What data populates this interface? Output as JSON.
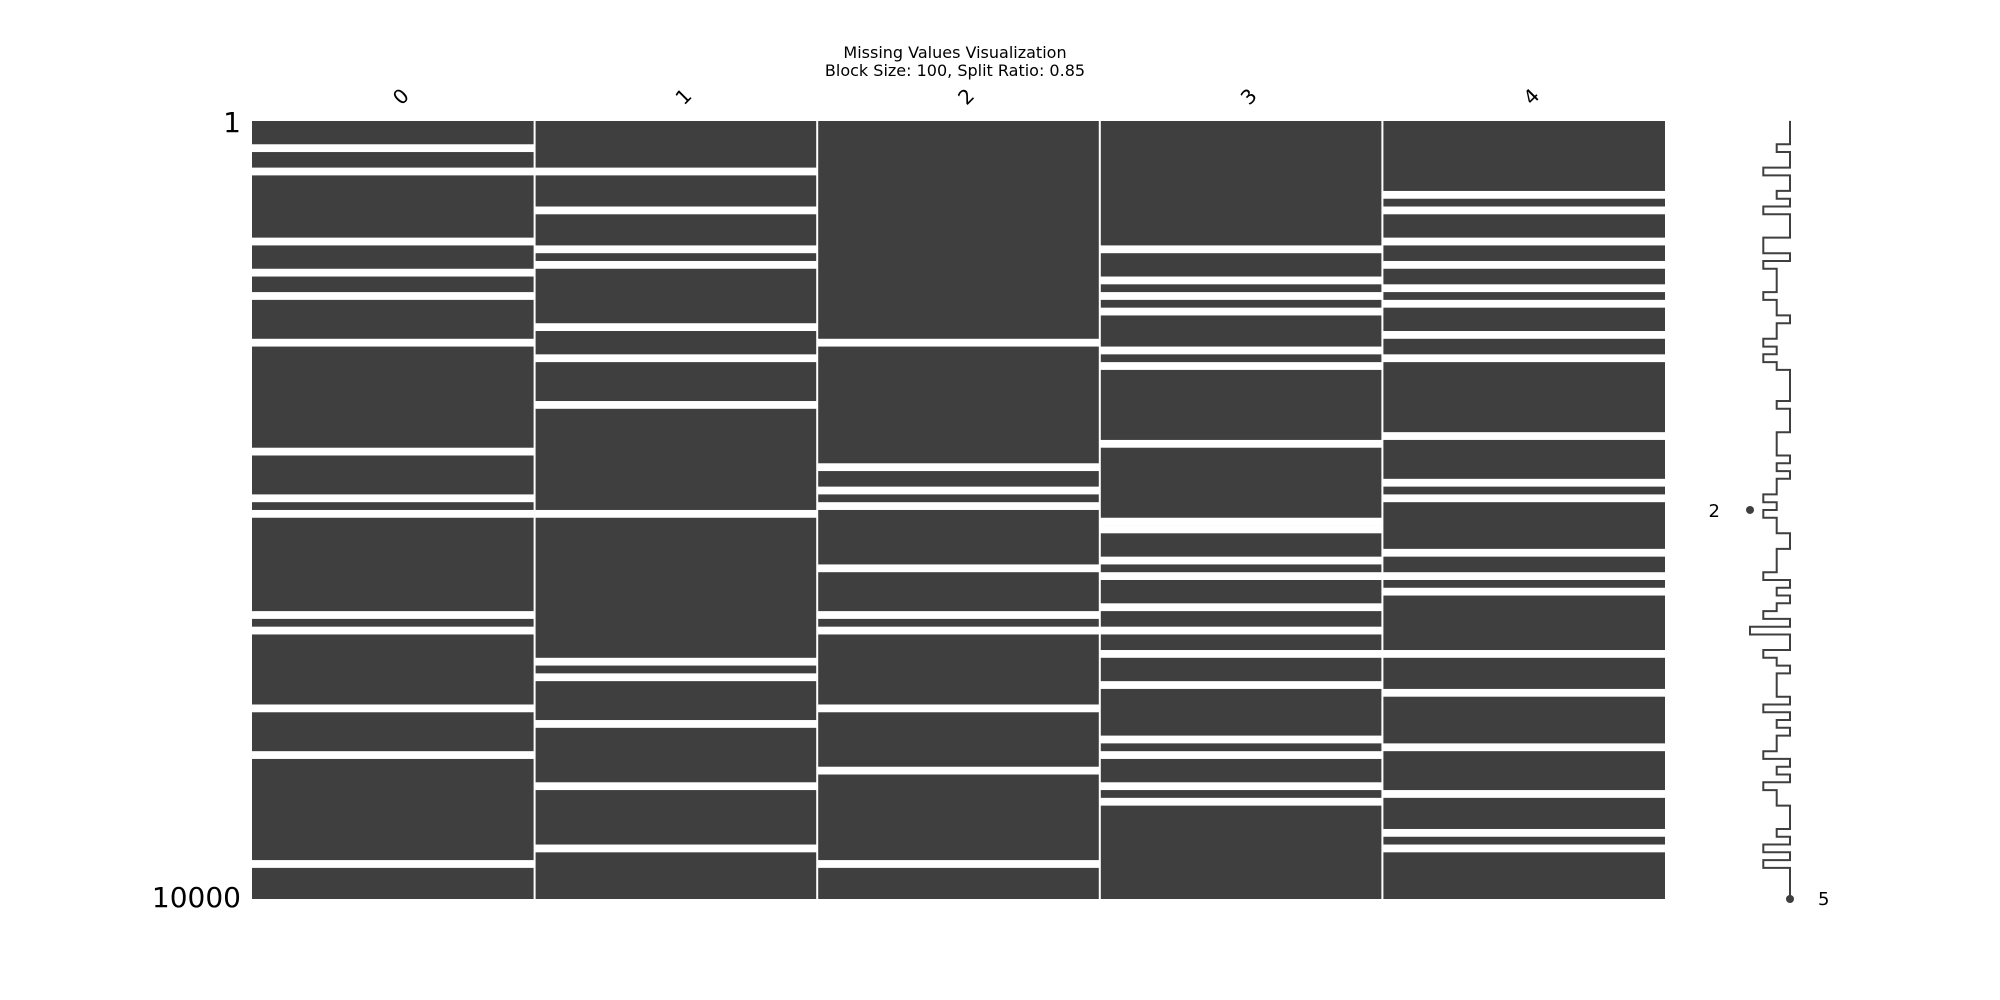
{
  "chart_data": {
    "type": "missing-matrix",
    "title": "Missing Values Visualization",
    "subtitle": "Block Size: 100, Split Ratio: 0.85",
    "row_range": [
      1,
      10000
    ],
    "row_tick_labels": [
      "1",
      "10000"
    ],
    "columns": [
      "0",
      "1",
      "2",
      "3",
      "4"
    ],
    "present_color": "#3f3f3f",
    "missing_color": "#ffffff",
    "missing_rows": [
      [
        300,
        400,
        600,
        700,
        1500,
        1600,
        1900,
        2000,
        2200,
        2300,
        2800,
        2900,
        4200,
        4300,
        4800,
        4900,
        5000,
        5100,
        6300,
        6400,
        6500,
        6600,
        7500,
        7600,
        8100,
        8200,
        9500,
        9600
      ],
      [
        600,
        700,
        1100,
        1200,
        1600,
        1700,
        1800,
        1900,
        2600,
        2700,
        3000,
        3100,
        3600,
        3700,
        5000,
        5100,
        6900,
        7000,
        7100,
        7200,
        7700,
        7800,
        8500,
        8600,
        9300,
        9400
      ],
      [
        2800,
        2900,
        4400,
        4500,
        4700,
        4800,
        4900,
        5000,
        5700,
        5800,
        6300,
        6400,
        6500,
        6600,
        7500,
        7600,
        8300,
        8400,
        9500,
        9600
      ],
      [
        1600,
        1700,
        2000,
        2100,
        2200,
        2300,
        2400,
        2500,
        2900,
        3000,
        3100,
        3200,
        4100,
        4200,
        5100,
        5200,
        5200,
        5300,
        5600,
        5700,
        5800,
        5900,
        6200,
        6300,
        6500,
        6600,
        6800,
        6900,
        7200,
        7300,
        7900,
        8000,
        8100,
        8200,
        8500,
        8600,
        8700,
        8800
      ],
      [
        900,
        1000,
        1100,
        1200,
        1500,
        1600,
        1800,
        1900,
        2100,
        2200,
        2300,
        2400,
        2700,
        2800,
        3000,
        3100,
        4000,
        4100,
        4600,
        4700,
        4800,
        4900,
        5500,
        5600,
        5800,
        5900,
        6000,
        6100,
        6800,
        6900,
        7300,
        7400,
        8000,
        8100,
        8600,
        8700,
        9100,
        9200,
        9300,
        9400
      ]
    ],
    "sparkline": {
      "min_label": "2",
      "max_label": "5",
      "min_row": 5000,
      "max_row": 10000,
      "min_value": 2,
      "max_value": 5
    }
  }
}
